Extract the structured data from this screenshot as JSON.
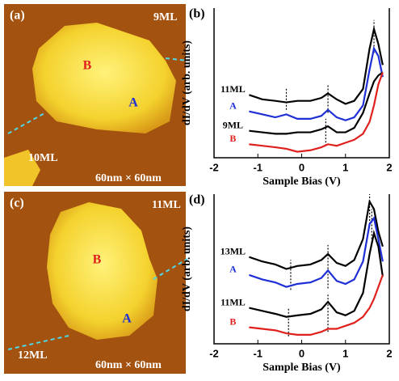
{
  "images": [
    {
      "panel": "(a)",
      "labels": [
        "9ML",
        "B",
        "A",
        "10ML"
      ],
      "scale": "60nm × 60nm"
    },
    {
      "panel": "(c)",
      "labels": [
        "11ML",
        "B",
        "A",
        "12ML"
      ],
      "scale": "60nm × 60nm"
    }
  ],
  "chart_data": [
    {
      "type": "line",
      "panel": "(b)",
      "x_label": "Sample Bias (V)",
      "y_label": "dI/dV (arb. units)",
      "xlim": [
        -2,
        2
      ],
      "xticks": [
        -2,
        -1,
        0,
        1,
        2
      ],
      "ylim": [
        0,
        10
      ],
      "x": [
        -1.2,
        -0.9,
        -0.6,
        -0.35,
        -0.1,
        0.2,
        0.45,
        0.6,
        0.8,
        1.0,
        1.2,
        1.4,
        1.55,
        1.65,
        1.75,
        1.85
      ],
      "series": [
        {
          "name": "11ML",
          "color": "#000000",
          "values": [
            4.2,
            3.9,
            3.8,
            3.7,
            3.8,
            3.8,
            4.0,
            4.3,
            3.9,
            3.6,
            3.8,
            4.6,
            7.3,
            8.6,
            7.6,
            6.2
          ]
        },
        {
          "name": "A",
          "color": "#1f2fd6",
          "values": [
            3.1,
            2.9,
            2.7,
            2.9,
            2.6,
            2.6,
            2.8,
            3.2,
            2.7,
            2.5,
            2.7,
            3.5,
            5.9,
            7.3,
            6.8,
            5.4
          ]
        },
        {
          "name": "9ML",
          "color": "#000000",
          "values": [
            1.8,
            1.7,
            1.6,
            1.6,
            1.7,
            1.7,
            1.9,
            2.1,
            1.7,
            1.7,
            2.0,
            3.0,
            4.3,
            5.1,
            5.5,
            5.7
          ]
        },
        {
          "name": "B",
          "color": "#e0201c",
          "values": [
            0.9,
            0.8,
            0.7,
            0.6,
            0.4,
            0.5,
            0.7,
            0.9,
            0.8,
            1.0,
            1.2,
            1.6,
            2.4,
            3.5,
            4.9,
            5.7
          ]
        }
      ],
      "markers": [
        {
          "x": -0.35,
          "range": [
            3.2,
            4.6
          ]
        },
        {
          "x": 0.6,
          "range": [
            3.0,
            4.9
          ]
        },
        {
          "x": 0.55,
          "range": [
            0.8,
            2.6
          ]
        },
        {
          "x": 1.65,
          "range": [
            7.0,
            9.2
          ]
        }
      ]
    },
    {
      "type": "line",
      "panel": "(d)",
      "x_label": "Sample Bias (V)",
      "y_label": "dI/dV (arb. units)",
      "xlim": [
        -2,
        2
      ],
      "xticks": [
        -2,
        -1,
        0,
        1,
        2
      ],
      "ylim": [
        0,
        10
      ],
      "x": [
        -1.2,
        -0.9,
        -0.6,
        -0.35,
        -0.1,
        0.2,
        0.45,
        0.6,
        0.8,
        1.0,
        1.2,
        1.4,
        1.55,
        1.65,
        1.75,
        1.85
      ],
      "series": [
        {
          "name": "13ML",
          "color": "#000000",
          "values": [
            5.8,
            5.5,
            5.3,
            5.0,
            5.2,
            5.3,
            5.6,
            6.0,
            5.4,
            5.2,
            5.6,
            7.0,
            9.5,
            9.0,
            7.5,
            6.5
          ]
        },
        {
          "name": "A",
          "color": "#1f2fd6",
          "values": [
            4.6,
            4.3,
            4.1,
            3.8,
            4.0,
            4.1,
            4.4,
            4.9,
            4.2,
            4.0,
            4.3,
            5.5,
            8.0,
            8.4,
            7.0,
            5.5
          ]
        },
        {
          "name": "11ML",
          "color": "#000000",
          "values": [
            2.4,
            2.2,
            2.0,
            1.8,
            1.9,
            2.0,
            2.3,
            2.8,
            2.1,
            1.9,
            2.2,
            3.4,
            6.0,
            7.4,
            6.5,
            4.5
          ]
        },
        {
          "name": "B",
          "color": "#e0201c",
          "values": [
            1.1,
            1.0,
            0.9,
            0.7,
            0.6,
            0.6,
            0.8,
            1.0,
            1.0,
            1.2,
            1.4,
            1.8,
            2.4,
            3.0,
            3.8,
            4.6
          ]
        }
      ],
      "markers": [
        {
          "x": -0.25,
          "range": [
            3.6,
            5.6
          ]
        },
        {
          "x": 0.6,
          "range": [
            3.7,
            6.6
          ]
        },
        {
          "x": 1.55,
          "range": [
            8.0,
            10.0
          ]
        },
        {
          "x": -0.3,
          "range": [
            0.5,
            2.4
          ]
        },
        {
          "x": 0.6,
          "range": [
            0.8,
            3.4
          ]
        },
        {
          "x": 1.6,
          "range": [
            7.0,
            9.0
          ]
        }
      ]
    }
  ]
}
